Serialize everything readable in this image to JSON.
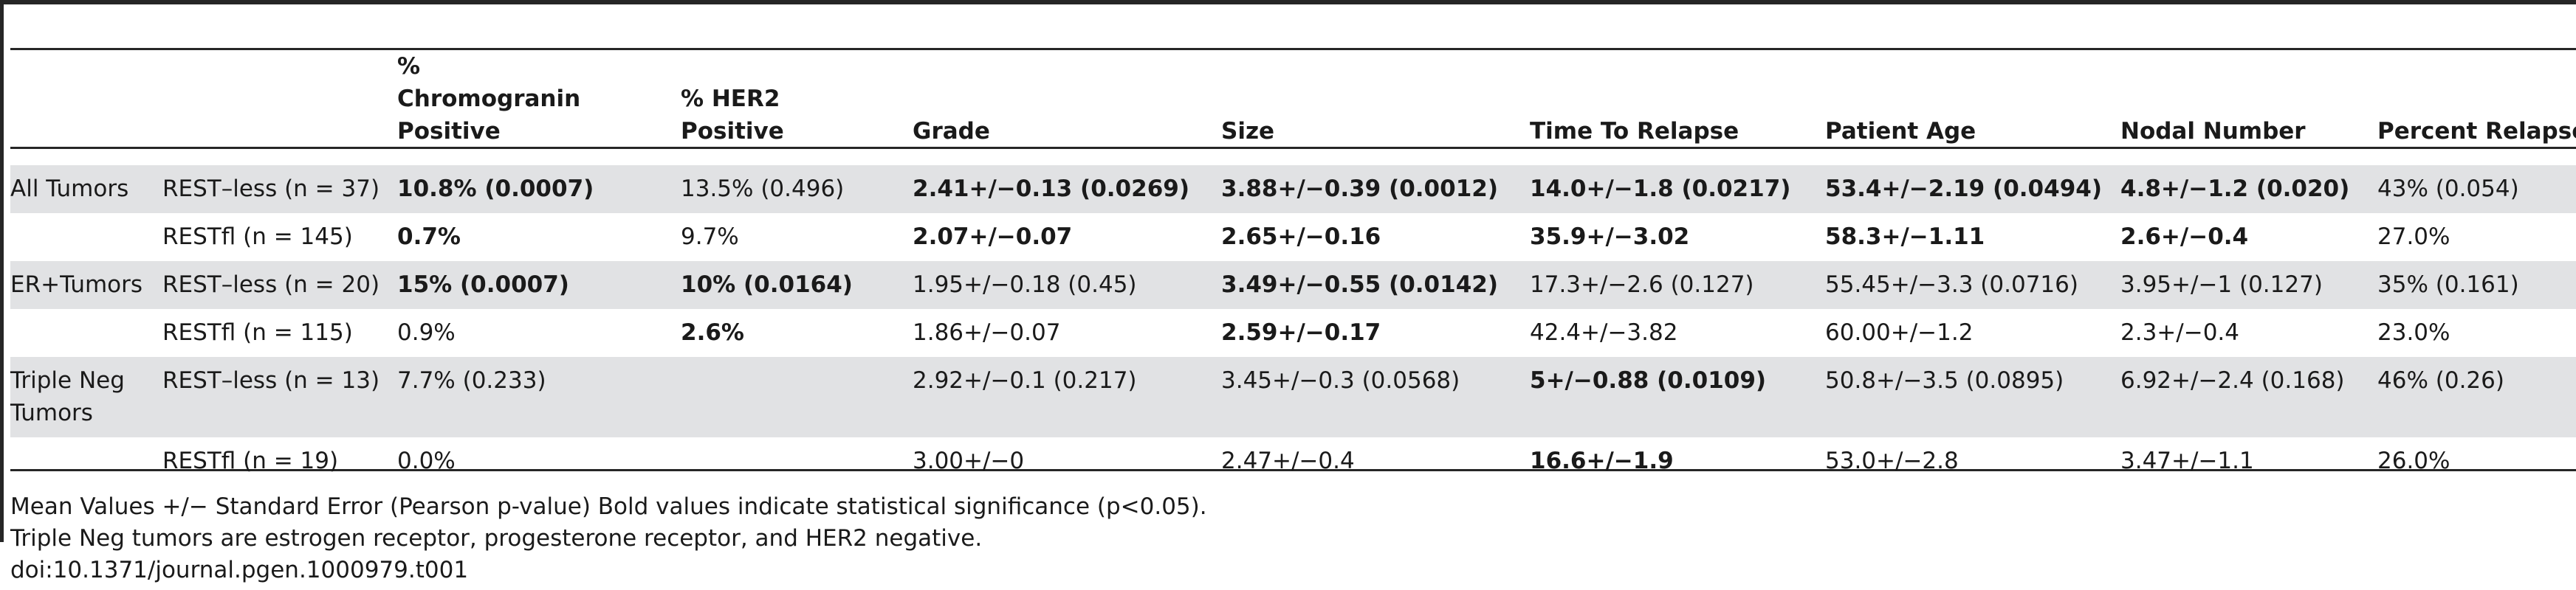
{
  "table": {
    "headers": [
      "",
      "",
      "% Chromogranin Positive",
      "% HER2 Positive",
      "Grade",
      "Size",
      "Time To Relapse",
      "Patient Age",
      "Nodal Number",
      "Percent Relapse"
    ],
    "rows": [
      {
        "group": "All Tumors",
        "subgroup": "REST–less (n = 37)",
        "cells": [
          "10.8% (0.0007)",
          "13.5% (0.496)",
          "2.41+/−0.13 (0.0269)",
          "3.88+/−0.39 (0.0012)",
          "14.0+/−1.8 (0.0217)",
          "53.4+/−2.19 (0.0494)",
          "4.8+/−1.2 (0.020)",
          "43% (0.054)"
        ],
        "bold": [
          true,
          false,
          true,
          true,
          true,
          true,
          true,
          false
        ]
      },
      {
        "group": "",
        "subgroup": "RESTfl (n = 145)",
        "cells": [
          "0.7%",
          "9.7%",
          "2.07+/−0.07",
          "2.65+/−0.16",
          "35.9+/−3.02",
          "58.3+/−1.11",
          "2.6+/−0.4",
          "27.0%"
        ],
        "bold": [
          true,
          false,
          true,
          true,
          true,
          true,
          true,
          false
        ]
      },
      {
        "group": "ER+Tumors",
        "subgroup": "REST–less (n = 20)",
        "cells": [
          "15% (0.0007)",
          "10% (0.0164)",
          "1.95+/−0.18 (0.45)",
          "3.49+/−0.55 (0.0142)",
          "17.3+/−2.6 (0.127)",
          "55.45+/−3.3 (0.0716)",
          "3.95+/−1 (0.127)",
          "35% (0.161)"
        ],
        "bold": [
          true,
          true,
          false,
          true,
          false,
          false,
          false,
          false
        ]
      },
      {
        "group": "",
        "subgroup": "RESTfl (n = 115)",
        "cells": [
          "0.9%",
          "2.6%",
          "1.86+/−0.07",
          "2.59+/−0.17",
          "42.4+/−3.82",
          "60.00+/−1.2",
          "2.3+/−0.4",
          "23.0%"
        ],
        "bold": [
          false,
          true,
          false,
          true,
          false,
          false,
          false,
          false
        ]
      },
      {
        "group": "Triple Neg Tumors",
        "subgroup": "REST–less (n = 13)",
        "cells": [
          "7.7% (0.233)",
          "",
          "2.92+/−0.1 (0.217)",
          "3.45+/−0.3 (0.0568)",
          "5+/−0.88 (0.0109)",
          "50.8+/−3.5 (0.0895)",
          "6.92+/−2.4 (0.168)",
          "46% (0.26)"
        ],
        "bold": [
          false,
          false,
          false,
          false,
          true,
          false,
          false,
          false
        ]
      },
      {
        "group": "",
        "subgroup": "RESTfl (n = 19)",
        "cells": [
          "0.0%",
          "",
          "3.00+/−0",
          "2.47+/−0.4",
          "16.6+/−1.9",
          "53.0+/−2.8",
          "3.47+/−1.1",
          "26.0%"
        ],
        "bold": [
          false,
          false,
          false,
          false,
          true,
          false,
          false,
          false
        ]
      }
    ]
  },
  "notes": [
    "Mean Values +/− Standard Error (Pearson p-value) Bold values indicate statistical significance (p<0.05).",
    "Triple Neg tumors are estrogen receptor, progesterone receptor, and HER2 negative.",
    "doi:10.1371/journal.pgen.1000979.t001"
  ]
}
